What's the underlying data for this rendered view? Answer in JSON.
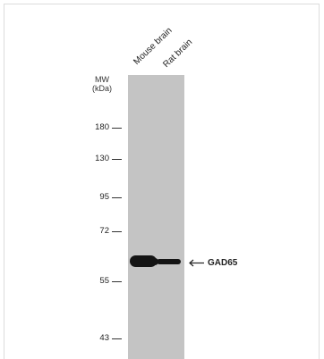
{
  "lanes": [
    "Mouse brain",
    "Rat brain"
  ],
  "mw_label": {
    "line1": "MW",
    "line2": "(kDa)"
  },
  "markers": [
    "180",
    "130",
    "95",
    "72",
    "55",
    "43"
  ],
  "target_label": "GAD65",
  "colors": {
    "membrane": "#c4c4c4",
    "band": "#141414",
    "text": "#222222"
  },
  "icons": {
    "target_arrow": "arrow-left-icon"
  }
}
